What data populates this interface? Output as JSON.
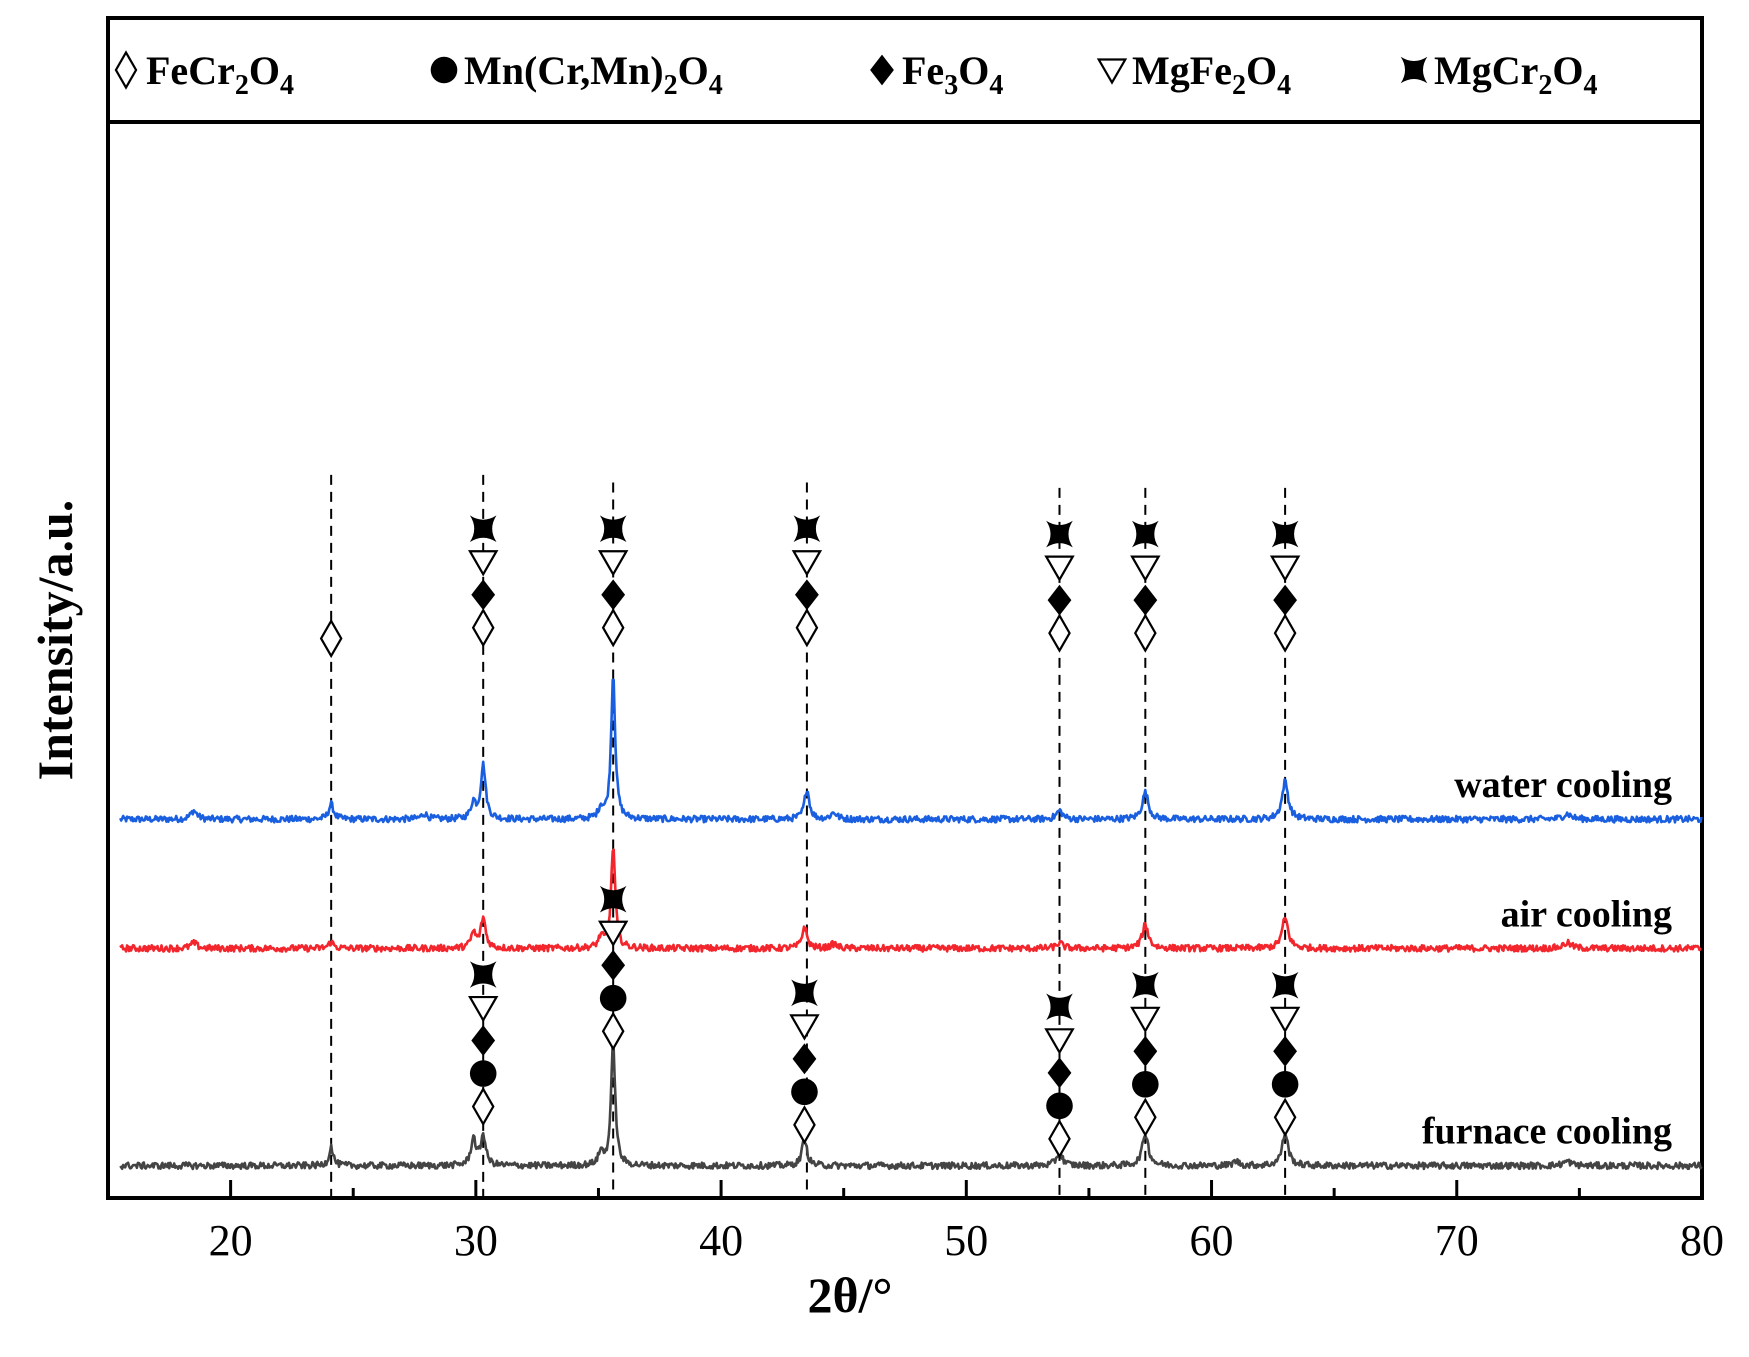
{
  "chart_data": {
    "type": "line",
    "xlabel": "2θ/°",
    "ylabel": "Intensity/a.u.",
    "xlim": [
      15,
      80
    ],
    "x_ticks": [
      20,
      30,
      40,
      50,
      60,
      70,
      80
    ],
    "legend_position": "top",
    "legend": [
      {
        "symbol": "open-diamond",
        "base": "FeCr",
        "sub1": "2",
        "mid": "O",
        "sub2": "4"
      },
      {
        "symbol": "filled-circle",
        "base": "Mn(Cr,Mn)",
        "sub1": "2",
        "mid": "O",
        "sub2": "4"
      },
      {
        "symbol": "filled-diamond",
        "base": "Fe",
        "sub1": "3",
        "mid": "O",
        "sub2": "4"
      },
      {
        "symbol": "open-triangle-down",
        "base": "MgFe",
        "sub1": "2",
        "mid": "O",
        "sub2": "4"
      },
      {
        "symbol": "bowtie",
        "base": "MgCr",
        "sub1": "2",
        "mid": "O",
        "sub2": "4"
      }
    ],
    "reference_lines_x": [
      24.1,
      30.3,
      35.6,
      43.5,
      53.8,
      57.3,
      63.0
    ],
    "series": [
      {
        "name": "water cooling",
        "color": "#1a5fe0",
        "baseline": 0.352,
        "peaks": [
          {
            "x": 18.5,
            "h": 0.008,
            "w": 0.15
          },
          {
            "x": 24.1,
            "h": 0.014,
            "w": 0.12
          },
          {
            "x": 27.9,
            "h": 0.005,
            "w": 0.15
          },
          {
            "x": 29.9,
            "h": 0.015,
            "w": 0.12
          },
          {
            "x": 30.3,
            "h": 0.05,
            "w": 0.12
          },
          {
            "x": 35.1,
            "h": 0.01,
            "w": 0.12
          },
          {
            "x": 35.6,
            "h": 0.135,
            "w": 0.1
          },
          {
            "x": 43.5,
            "h": 0.028,
            "w": 0.12
          },
          {
            "x": 44.6,
            "h": 0.006,
            "w": 0.15
          },
          {
            "x": 53.8,
            "h": 0.008,
            "w": 0.15
          },
          {
            "x": 57.3,
            "h": 0.025,
            "w": 0.15
          },
          {
            "x": 63.0,
            "h": 0.035,
            "w": 0.15
          },
          {
            "x": 74.5,
            "h": 0.005,
            "w": 0.2
          }
        ]
      },
      {
        "name": "air cooling",
        "color": "#f2262c",
        "baseline": 0.232,
        "peaks": [
          {
            "x": 18.5,
            "h": 0.005,
            "w": 0.15
          },
          {
            "x": 24.1,
            "h": 0.006,
            "w": 0.12
          },
          {
            "x": 29.9,
            "h": 0.014,
            "w": 0.12
          },
          {
            "x": 30.3,
            "h": 0.028,
            "w": 0.12
          },
          {
            "x": 35.1,
            "h": 0.01,
            "w": 0.12
          },
          {
            "x": 35.6,
            "h": 0.095,
            "w": 0.1
          },
          {
            "x": 43.4,
            "h": 0.02,
            "w": 0.12
          },
          {
            "x": 44.6,
            "h": 0.004,
            "w": 0.15
          },
          {
            "x": 53.8,
            "h": 0.005,
            "w": 0.15
          },
          {
            "x": 57.3,
            "h": 0.022,
            "w": 0.15
          },
          {
            "x": 63.0,
            "h": 0.028,
            "w": 0.15
          },
          {
            "x": 74.5,
            "h": 0.005,
            "w": 0.2
          }
        ]
      },
      {
        "name": "furnace cooling",
        "color": "#444444",
        "baseline": 0.03,
        "peaks": [
          {
            "x": 24.1,
            "h": 0.018,
            "w": 0.1
          },
          {
            "x": 29.9,
            "h": 0.025,
            "w": 0.12
          },
          {
            "x": 30.3,
            "h": 0.028,
            "w": 0.12
          },
          {
            "x": 35.1,
            "h": 0.012,
            "w": 0.12
          },
          {
            "x": 35.6,
            "h": 0.115,
            "w": 0.1
          },
          {
            "x": 43.4,
            "h": 0.025,
            "w": 0.12
          },
          {
            "x": 53.8,
            "h": 0.012,
            "w": 0.15
          },
          {
            "x": 57.3,
            "h": 0.03,
            "w": 0.15
          },
          {
            "x": 61.0,
            "h": 0.004,
            "w": 0.15
          },
          {
            "x": 63.0,
            "h": 0.03,
            "w": 0.15
          },
          {
            "x": 74.5,
            "h": 0.004,
            "w": 0.2
          }
        ]
      }
    ],
    "peak_markers": [
      {
        "x": 24.1,
        "y": 0.52,
        "symbols": [
          "open-diamond"
        ]
      },
      {
        "x": 30.3,
        "y": 0.53,
        "symbols": [
          "open-diamond",
          "filled-diamond",
          "open-triangle-down",
          "bowtie"
        ]
      },
      {
        "x": 35.6,
        "y": 0.53,
        "symbols": [
          "open-diamond",
          "filled-diamond",
          "open-triangle-down",
          "bowtie"
        ]
      },
      {
        "x": 43.5,
        "y": 0.53,
        "symbols": [
          "open-diamond",
          "filled-diamond",
          "open-triangle-down",
          "bowtie"
        ]
      },
      {
        "x": 53.8,
        "y": 0.525,
        "symbols": [
          "open-diamond",
          "filled-diamond",
          "open-triangle-down",
          "bowtie"
        ]
      },
      {
        "x": 57.3,
        "y": 0.525,
        "symbols": [
          "open-diamond",
          "filled-diamond",
          "open-triangle-down",
          "bowtie"
        ]
      },
      {
        "x": 63.0,
        "y": 0.525,
        "symbols": [
          "open-diamond",
          "filled-diamond",
          "open-triangle-down",
          "bowtie"
        ]
      },
      {
        "x": 30.3,
        "y": 0.085,
        "symbols": [
          "open-diamond",
          "filled-circle",
          "filled-diamond",
          "open-triangle-down",
          "bowtie"
        ]
      },
      {
        "x": 35.6,
        "y": 0.155,
        "symbols": [
          "open-diamond",
          "filled-circle",
          "filled-diamond",
          "open-triangle-down",
          "bowtie"
        ]
      },
      {
        "x": 43.4,
        "y": 0.068,
        "symbols": [
          "open-diamond",
          "filled-circle",
          "filled-diamond",
          "open-triangle-down",
          "bowtie"
        ]
      },
      {
        "x": 53.8,
        "y": 0.055,
        "symbols": [
          "open-diamond",
          "filled-circle",
          "filled-diamond",
          "open-triangle-down",
          "bowtie"
        ]
      },
      {
        "x": 57.3,
        "y": 0.075,
        "symbols": [
          "open-diamond",
          "filled-circle",
          "filled-diamond",
          "open-triangle-down",
          "bowtie"
        ]
      },
      {
        "x": 63.0,
        "y": 0.075,
        "symbols": [
          "open-diamond",
          "filled-circle",
          "filled-diamond",
          "open-triangle-down",
          "bowtie"
        ]
      }
    ]
  }
}
